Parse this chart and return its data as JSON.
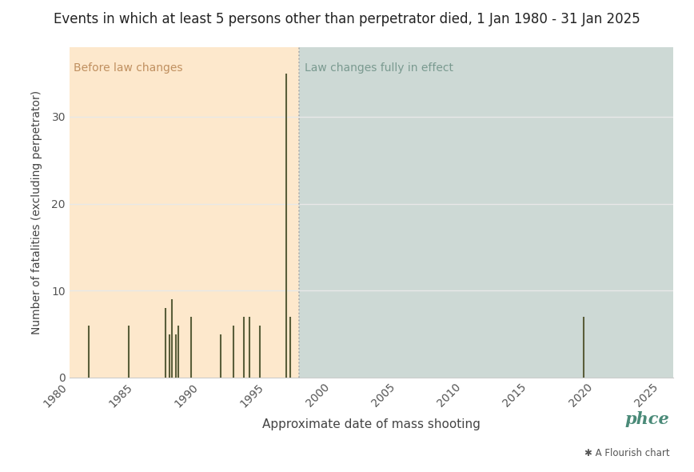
{
  "title": "Events in which at least 5 persons other than perpetrator died, 1 Jan 1980 - 31 Jan 2025",
  "xlabel": "Approximate date of mass shooting",
  "ylabel": "Number of fatalities (excluding perpetrator)",
  "xlim": [
    1980,
    2026
  ],
  "ylim": [
    0,
    38
  ],
  "yticks": [
    0,
    10,
    20,
    30
  ],
  "xticks": [
    1980,
    1985,
    1990,
    1995,
    2000,
    2005,
    2010,
    2015,
    2020,
    2025
  ],
  "divider_x": 1997.5,
  "region1_label": "Before law changes",
  "region2_label": "Law changes fully in effect",
  "region1_color": "#fde8cc",
  "region2_color": "#cdd9d5",
  "bar_color": "#5a5e3a",
  "divider_color": "#aaaaaa",
  "background_color": "#ffffff",
  "grid_color": "#e8e8e8",
  "events": [
    {
      "year": 1981.5,
      "fatalities": 6
    },
    {
      "year": 1984.5,
      "fatalities": 6
    },
    {
      "year": 1987.3,
      "fatalities": 8
    },
    {
      "year": 1987.6,
      "fatalities": 5
    },
    {
      "year": 1987.8,
      "fatalities": 9
    },
    {
      "year": 1988.1,
      "fatalities": 5
    },
    {
      "year": 1988.3,
      "fatalities": 6
    },
    {
      "year": 1989.3,
      "fatalities": 7
    },
    {
      "year": 1991.5,
      "fatalities": 5
    },
    {
      "year": 1992.5,
      "fatalities": 6
    },
    {
      "year": 1993.3,
      "fatalities": 7
    },
    {
      "year": 1993.7,
      "fatalities": 7
    },
    {
      "year": 1994.5,
      "fatalities": 6
    },
    {
      "year": 1996.5,
      "fatalities": 35
    },
    {
      "year": 1996.8,
      "fatalities": 7
    },
    {
      "year": 2019.2,
      "fatalities": 7
    }
  ],
  "logo_text": "phce",
  "flourish_text": "A Flourish chart",
  "title_fontsize": 12,
  "label_fontsize": 11,
  "tick_fontsize": 10,
  "region_label_fontsize": 10
}
